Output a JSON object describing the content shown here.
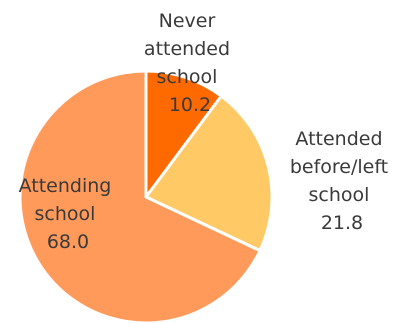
{
  "chart_data": {
    "type": "pie",
    "series": [
      {
        "values": [
          10.2,
          21.8,
          68.0
        ],
        "labels": [
          "Never attended school",
          "Attended before/left school",
          "Attending school"
        ],
        "colors": [
          "#FF6A00",
          "#FFC966",
          "#FF9A5A"
        ]
      }
    ],
    "categories": [
      "Never attended school",
      "Attended before/left school",
      "Attending school"
    ],
    "data_labels": [
      {
        "lines": [
          "Never",
          "attended",
          "school",
          "10.2"
        ]
      },
      {
        "lines": [
          "Attended",
          "before/left",
          "school",
          "21.8"
        ]
      },
      {
        "lines": [
          "Attending",
          "school",
          "68.0"
        ]
      }
    ],
    "start_angle": "12 o'clock",
    "direction": "clockwise",
    "legend": "none",
    "title": ""
  }
}
